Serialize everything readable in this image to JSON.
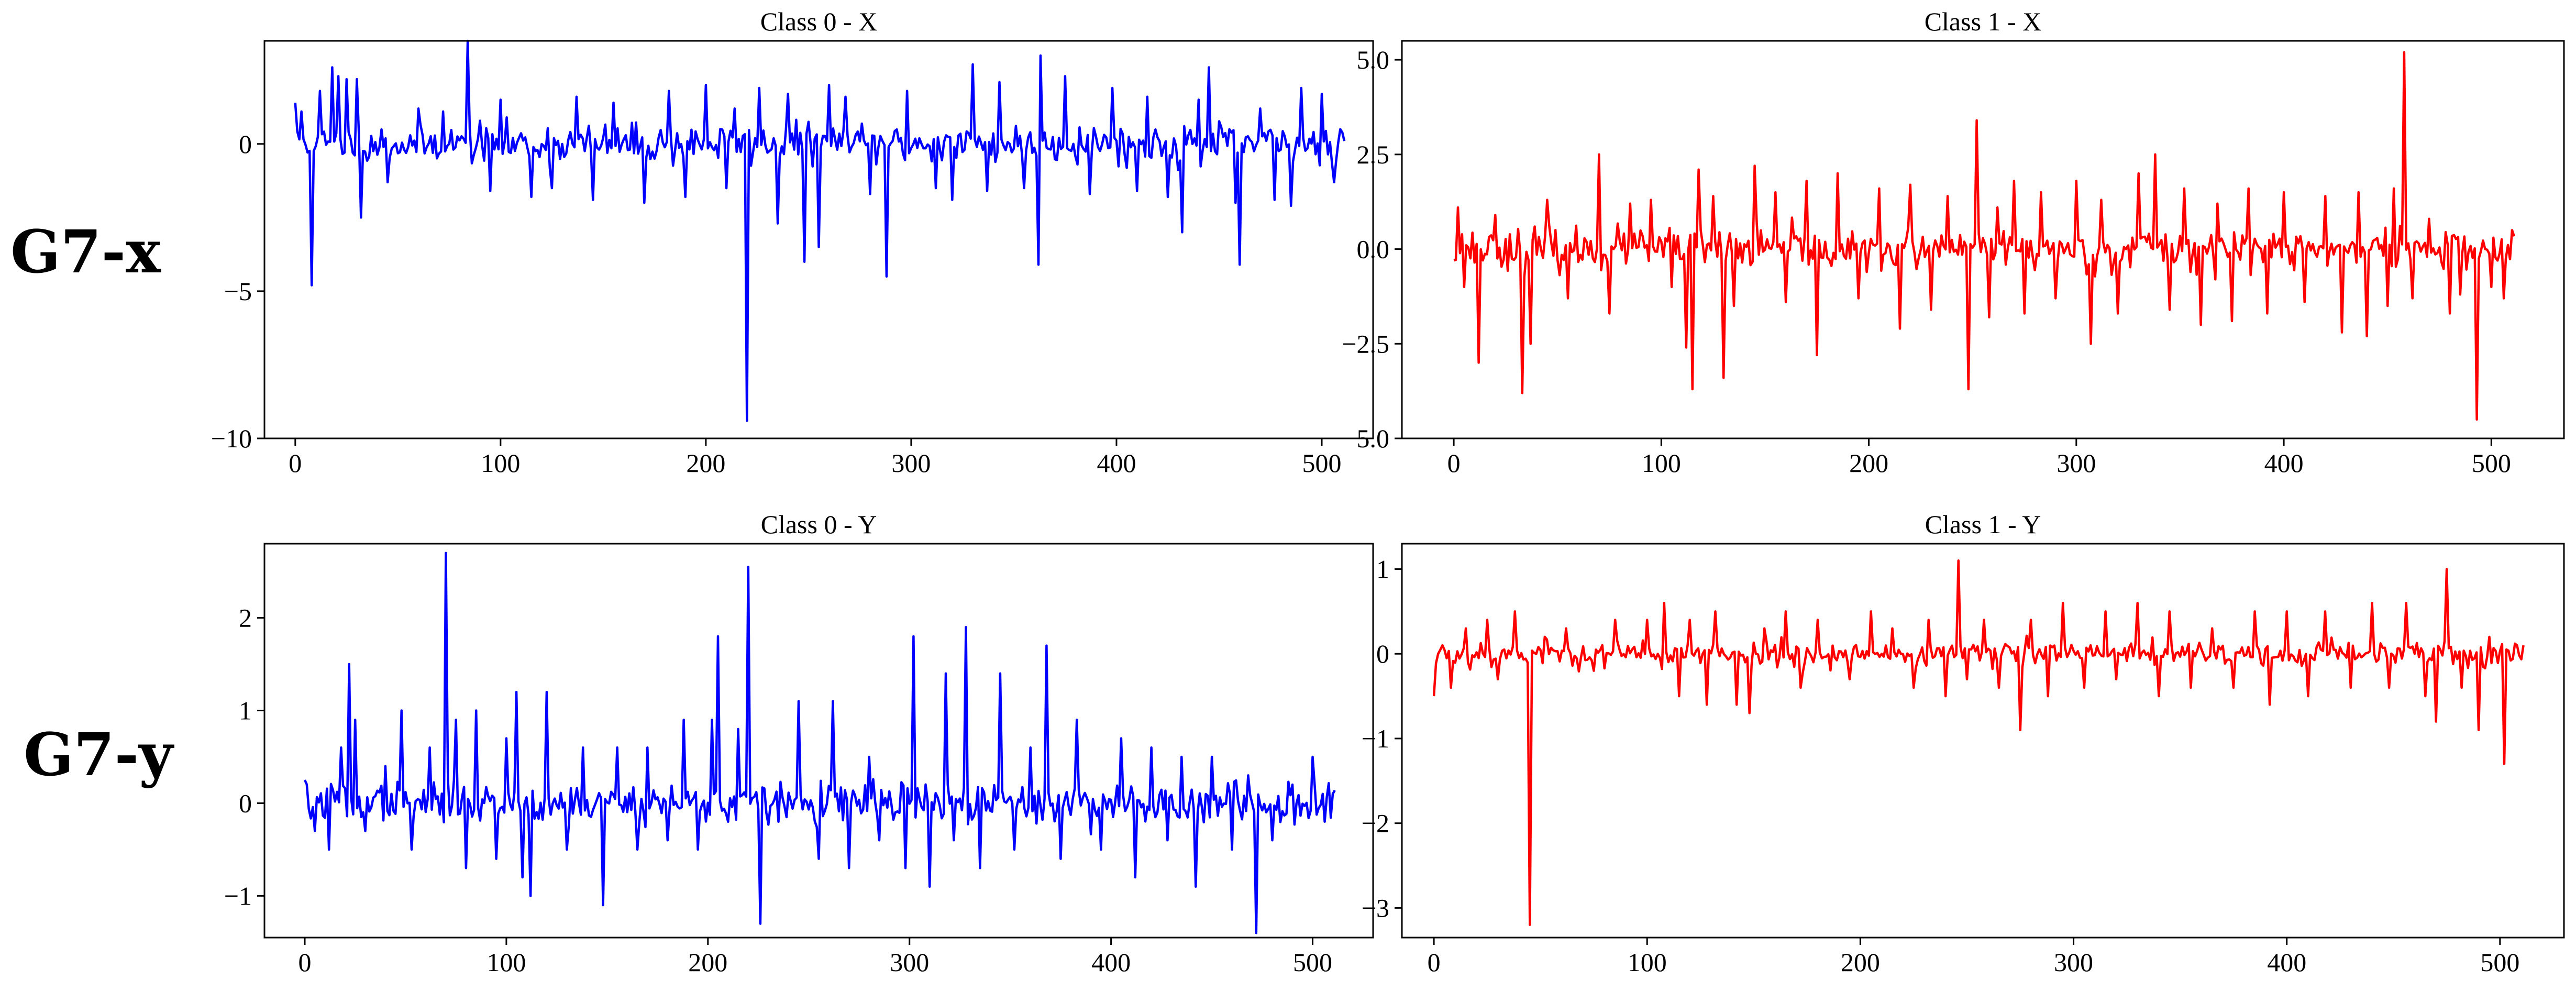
{
  "row_labels": [
    "G7-x",
    "G7-y"
  ],
  "colors": {
    "class0": "#0000ff",
    "class1": "#ff0000",
    "axes": "#000000"
  },
  "chart_data": [
    {
      "type": "line",
      "title": "Class 0 - X",
      "series": [
        {
          "name": "Class 0 - X",
          "color": "#0000ff"
        }
      ],
      "xlim": [
        -15,
        525
      ],
      "ylim": [
        -10,
        3.5
      ],
      "xticks": [
        0,
        100,
        200,
        300,
        400,
        500
      ],
      "yticks": [
        0,
        -5,
        -10
      ],
      "yticklabels": [
        "0",
        "−5",
        "−10"
      ],
      "n_points": 512,
      "baseline_std": 0.55,
      "seed": 11,
      "spikes": [
        [
          0,
          1.4
        ],
        [
          3,
          1.1
        ],
        [
          8,
          -4.8
        ],
        [
          12,
          1.8
        ],
        [
          18,
          2.6
        ],
        [
          21,
          2.3
        ],
        [
          25,
          2.2
        ],
        [
          30,
          2.2
        ],
        [
          32,
          -2.5
        ],
        [
          45,
          -1.3
        ],
        [
          60,
          1.2
        ],
        [
          72,
          1.1
        ],
        [
          84,
          3.5
        ],
        [
          95,
          -1.6
        ],
        [
          100,
          1.5
        ],
        [
          115,
          -1.8
        ],
        [
          125,
          -1.5
        ],
        [
          137,
          1.6
        ],
        [
          145,
          -1.9
        ],
        [
          155,
          1.4
        ],
        [
          170,
          -2.0
        ],
        [
          182,
          1.8
        ],
        [
          190,
          -1.8
        ],
        [
          200,
          2.0
        ],
        [
          210,
          -1.5
        ],
        [
          214,
          1.2
        ],
        [
          220,
          -9.4
        ],
        [
          226,
          1.9
        ],
        [
          235,
          -2.7
        ],
        [
          240,
          1.7
        ],
        [
          248,
          -4.0
        ],
        [
          255,
          -3.5
        ],
        [
          260,
          2.0
        ],
        [
          268,
          1.6
        ],
        [
          280,
          -1.7
        ],
        [
          288,
          -4.5
        ],
        [
          298,
          1.8
        ],
        [
          312,
          -1.5
        ],
        [
          320,
          -1.9
        ],
        [
          330,
          2.7
        ],
        [
          337,
          -1.6
        ],
        [
          343,
          2.1
        ],
        [
          355,
          -1.5
        ],
        [
          362,
          -4.1
        ],
        [
          363,
          3.0
        ],
        [
          375,
          2.3
        ],
        [
          387,
          -1.7
        ],
        [
          398,
          1.9
        ],
        [
          410,
          -1.6
        ],
        [
          415,
          1.6
        ],
        [
          425,
          -1.8
        ],
        [
          432,
          -3.0
        ],
        [
          440,
          1.5
        ],
        [
          445,
          2.6
        ],
        [
          458,
          -2.0
        ],
        [
          460,
          -4.1
        ],
        [
          470,
          1.2
        ],
        [
          477,
          -1.9
        ],
        [
          485,
          -2.1
        ],
        [
          490,
          1.9
        ],
        [
          500,
          1.7
        ],
        [
          506,
          -1.3
        ],
        [
          509,
          0.5
        ]
      ]
    },
    {
      "type": "line",
      "title": "Class 1 - X",
      "series": [
        {
          "name": "Class 1 - X",
          "color": "#ff0000"
        }
      ],
      "xlim": [
        -25,
        535
      ],
      "ylim": [
        -5.0,
        5.5
      ],
      "xticks": [
        0,
        100,
        200,
        300,
        400,
        500
      ],
      "yticks": [
        5.0,
        2.5,
        0.0,
        -2.5,
        -5.0
      ],
      "yticklabels": [
        "5.0",
        "2.5",
        "0.0",
        "−2.5",
        "−5.0"
      ],
      "n_points": 512,
      "baseline_std": 0.45,
      "seed": 23,
      "spikes": [
        [
          2,
          1.1
        ],
        [
          5,
          -1.0
        ],
        [
          12,
          -3.0
        ],
        [
          20,
          0.9
        ],
        [
          33,
          -3.8
        ],
        [
          37,
          -2.5
        ],
        [
          45,
          1.3
        ],
        [
          55,
          -1.3
        ],
        [
          70,
          2.5
        ],
        [
          75,
          -1.7
        ],
        [
          85,
          1.2
        ],
        [
          95,
          1.3
        ],
        [
          105,
          -1.0
        ],
        [
          112,
          -2.6
        ],
        [
          115,
          -3.7
        ],
        [
          118,
          2.1
        ],
        [
          125,
          1.4
        ],
        [
          130,
          -3.4
        ],
        [
          135,
          -1.5
        ],
        [
          145,
          2.2
        ],
        [
          155,
          1.5
        ],
        [
          160,
          -1.4
        ],
        [
          170,
          1.8
        ],
        [
          175,
          -2.8
        ],
        [
          185,
          2.0
        ],
        [
          195,
          -1.3
        ],
        [
          205,
          1.6
        ],
        [
          215,
          -2.1
        ],
        [
          220,
          1.7
        ],
        [
          230,
          -1.6
        ],
        [
          238,
          1.4
        ],
        [
          248,
          -3.7
        ],
        [
          252,
          3.4
        ],
        [
          258,
          -1.8
        ],
        [
          262,
          1.1
        ],
        [
          270,
          1.8
        ],
        [
          275,
          -1.7
        ],
        [
          283,
          1.5
        ],
        [
          290,
          -1.3
        ],
        [
          300,
          1.8
        ],
        [
          307,
          -2.5
        ],
        [
          312,
          1.3
        ],
        [
          320,
          -1.7
        ],
        [
          330,
          2.0
        ],
        [
          338,
          2.5
        ],
        [
          345,
          -1.6
        ],
        [
          352,
          1.6
        ],
        [
          360,
          -2.0
        ],
        [
          368,
          1.2
        ],
        [
          375,
          -1.9
        ],
        [
          383,
          1.6
        ],
        [
          392,
          -1.7
        ],
        [
          400,
          1.5
        ],
        [
          410,
          -1.4
        ],
        [
          420,
          1.4
        ],
        [
          428,
          -2.2
        ],
        [
          436,
          1.5
        ],
        [
          440,
          -2.3
        ],
        [
          450,
          -1.5
        ],
        [
          453,
          1.6
        ],
        [
          458,
          5.2
        ],
        [
          462,
          -1.3
        ],
        [
          470,
          0.8
        ],
        [
          480,
          -1.7
        ],
        [
          485,
          -1.2
        ],
        [
          493,
          -4.5
        ],
        [
          500,
          -1.0
        ],
        [
          506,
          -1.3
        ],
        [
          510,
          0.5
        ]
      ]
    },
    {
      "type": "line",
      "title": "Class 0 - Y",
      "series": [
        {
          "name": "Class 0 - Y",
          "color": "#0000ff"
        }
      ],
      "xlim": [
        -20,
        530
      ],
      "ylim": [
        -1.45,
        2.8
      ],
      "xticks": [
        0,
        100,
        200,
        300,
        400,
        500
      ],
      "yticks": [
        2,
        1,
        0,
        -1
      ],
      "yticklabels": [
        "2",
        "1",
        "0",
        "−1"
      ],
      "n_points": 512,
      "baseline_std": 0.18,
      "seed": 37,
      "spikes": [
        [
          0,
          0.25
        ],
        [
          5,
          -0.3
        ],
        [
          12,
          -0.5
        ],
        [
          18,
          0.6
        ],
        [
          22,
          1.5
        ],
        [
          25,
          0.9
        ],
        [
          30,
          -0.3
        ],
        [
          40,
          0.4
        ],
        [
          48,
          1.0
        ],
        [
          53,
          -0.5
        ],
        [
          62,
          0.6
        ],
        [
          70,
          2.7
        ],
        [
          75,
          0.9
        ],
        [
          80,
          -0.7
        ],
        [
          85,
          1.0
        ],
        [
          95,
          -0.6
        ],
        [
          100,
          0.7
        ],
        [
          105,
          1.2
        ],
        [
          108,
          -0.8
        ],
        [
          112,
          -1.0
        ],
        [
          120,
          1.2
        ],
        [
          130,
          -0.5
        ],
        [
          138,
          0.6
        ],
        [
          148,
          -1.1
        ],
        [
          155,
          0.6
        ],
        [
          165,
          -0.5
        ],
        [
          170,
          0.6
        ],
        [
          180,
          -0.4
        ],
        [
          188,
          0.9
        ],
        [
          195,
          -0.5
        ],
        [
          202,
          0.9
        ],
        [
          205,
          1.8
        ],
        [
          210,
          -0.2
        ],
        [
          215,
          0.8
        ],
        [
          220,
          2.55
        ],
        [
          226,
          -1.3
        ],
        [
          235,
          -0.2
        ],
        [
          245,
          1.1
        ],
        [
          255,
          -0.6
        ],
        [
          262,
          1.1
        ],
        [
          270,
          -0.7
        ],
        [
          280,
          0.5
        ],
        [
          285,
          -0.4
        ],
        [
          298,
          -0.7
        ],
        [
          302,
          1.8
        ],
        [
          310,
          -0.9
        ],
        [
          318,
          1.4
        ],
        [
          322,
          -0.4
        ],
        [
          328,
          1.9
        ],
        [
          335,
          -0.7
        ],
        [
          345,
          1.4
        ],
        [
          352,
          -0.5
        ],
        [
          360,
          0.6
        ],
        [
          368,
          1.7
        ],
        [
          375,
          -0.6
        ],
        [
          383,
          0.9
        ],
        [
          395,
          -0.5
        ],
        [
          405,
          0.7
        ],
        [
          412,
          -0.8
        ],
        [
          420,
          0.6
        ],
        [
          428,
          -0.4
        ],
        [
          435,
          0.5
        ],
        [
          442,
          -0.9
        ],
        [
          450,
          0.5
        ],
        [
          460,
          -0.5
        ],
        [
          468,
          0.3
        ],
        [
          472,
          -1.4
        ],
        [
          480,
          -0.4
        ],
        [
          490,
          0.2
        ],
        [
          500,
          0.5
        ],
        [
          505,
          0.1
        ],
        [
          510,
          0.1
        ]
      ]
    },
    {
      "type": "line",
      "title": "Class 1 - Y",
      "series": [
        {
          "name": "Class 1 - Y",
          "color": "#ff0000"
        }
      ],
      "xlim": [
        -15,
        530
      ],
      "ylim": [
        -3.35,
        1.3
      ],
      "xticks": [
        0,
        100,
        200,
        300,
        400,
        500
      ],
      "yticks": [
        1,
        0,
        -1,
        -2,
        -3
      ],
      "yticklabels": [
        "1",
        "0",
        "−1",
        "−2",
        "−3"
      ],
      "n_points": 512,
      "baseline_std": 0.13,
      "seed": 53,
      "spikes": [
        [
          0,
          -0.5
        ],
        [
          4,
          0.1
        ],
        [
          8,
          -0.4
        ],
        [
          15,
          0.3
        ],
        [
          25,
          0.4
        ],
        [
          30,
          -0.3
        ],
        [
          38,
          0.5
        ],
        [
          45,
          -3.2
        ],
        [
          52,
          0.2
        ],
        [
          62,
          0.3
        ],
        [
          75,
          -0.2
        ],
        [
          85,
          0.4
        ],
        [
          100,
          0.4
        ],
        [
          108,
          0.6
        ],
        [
          115,
          -0.5
        ],
        [
          120,
          0.4
        ],
        [
          128,
          -0.6
        ],
        [
          132,
          0.5
        ],
        [
          142,
          -0.6
        ],
        [
          148,
          -0.7
        ],
        [
          155,
          0.3
        ],
        [
          165,
          0.5
        ],
        [
          172,
          -0.4
        ],
        [
          180,
          0.4
        ],
        [
          195,
          -0.3
        ],
        [
          205,
          0.5
        ],
        [
          215,
          0.3
        ],
        [
          225,
          -0.4
        ],
        [
          232,
          0.4
        ],
        [
          240,
          -0.5
        ],
        [
          246,
          1.1
        ],
        [
          250,
          -0.3
        ],
        [
          258,
          0.4
        ],
        [
          265,
          -0.4
        ],
        [
          275,
          -0.9
        ],
        [
          280,
          0.4
        ],
        [
          288,
          -0.5
        ],
        [
          295,
          0.6
        ],
        [
          305,
          -0.4
        ],
        [
          315,
          0.5
        ],
        [
          320,
          -0.3
        ],
        [
          330,
          0.6
        ],
        [
          340,
          -0.5
        ],
        [
          345,
          0.5
        ],
        [
          355,
          -0.4
        ],
        [
          365,
          0.3
        ],
        [
          375,
          -0.4
        ],
        [
          385,
          0.5
        ],
        [
          392,
          -0.6
        ],
        [
          400,
          0.5
        ],
        [
          410,
          -0.5
        ],
        [
          418,
          0.5
        ],
        [
          430,
          -0.4
        ],
        [
          440,
          0.6
        ],
        [
          448,
          -0.4
        ],
        [
          456,
          0.6
        ],
        [
          465,
          -0.5
        ],
        [
          470,
          -0.8
        ],
        [
          475,
          1.0
        ],
        [
          482,
          -0.4
        ],
        [
          490,
          -0.9
        ],
        [
          495,
          0.2
        ],
        [
          502,
          -1.3
        ],
        [
          508,
          0.1
        ],
        [
          511,
          0.1
        ]
      ]
    }
  ]
}
